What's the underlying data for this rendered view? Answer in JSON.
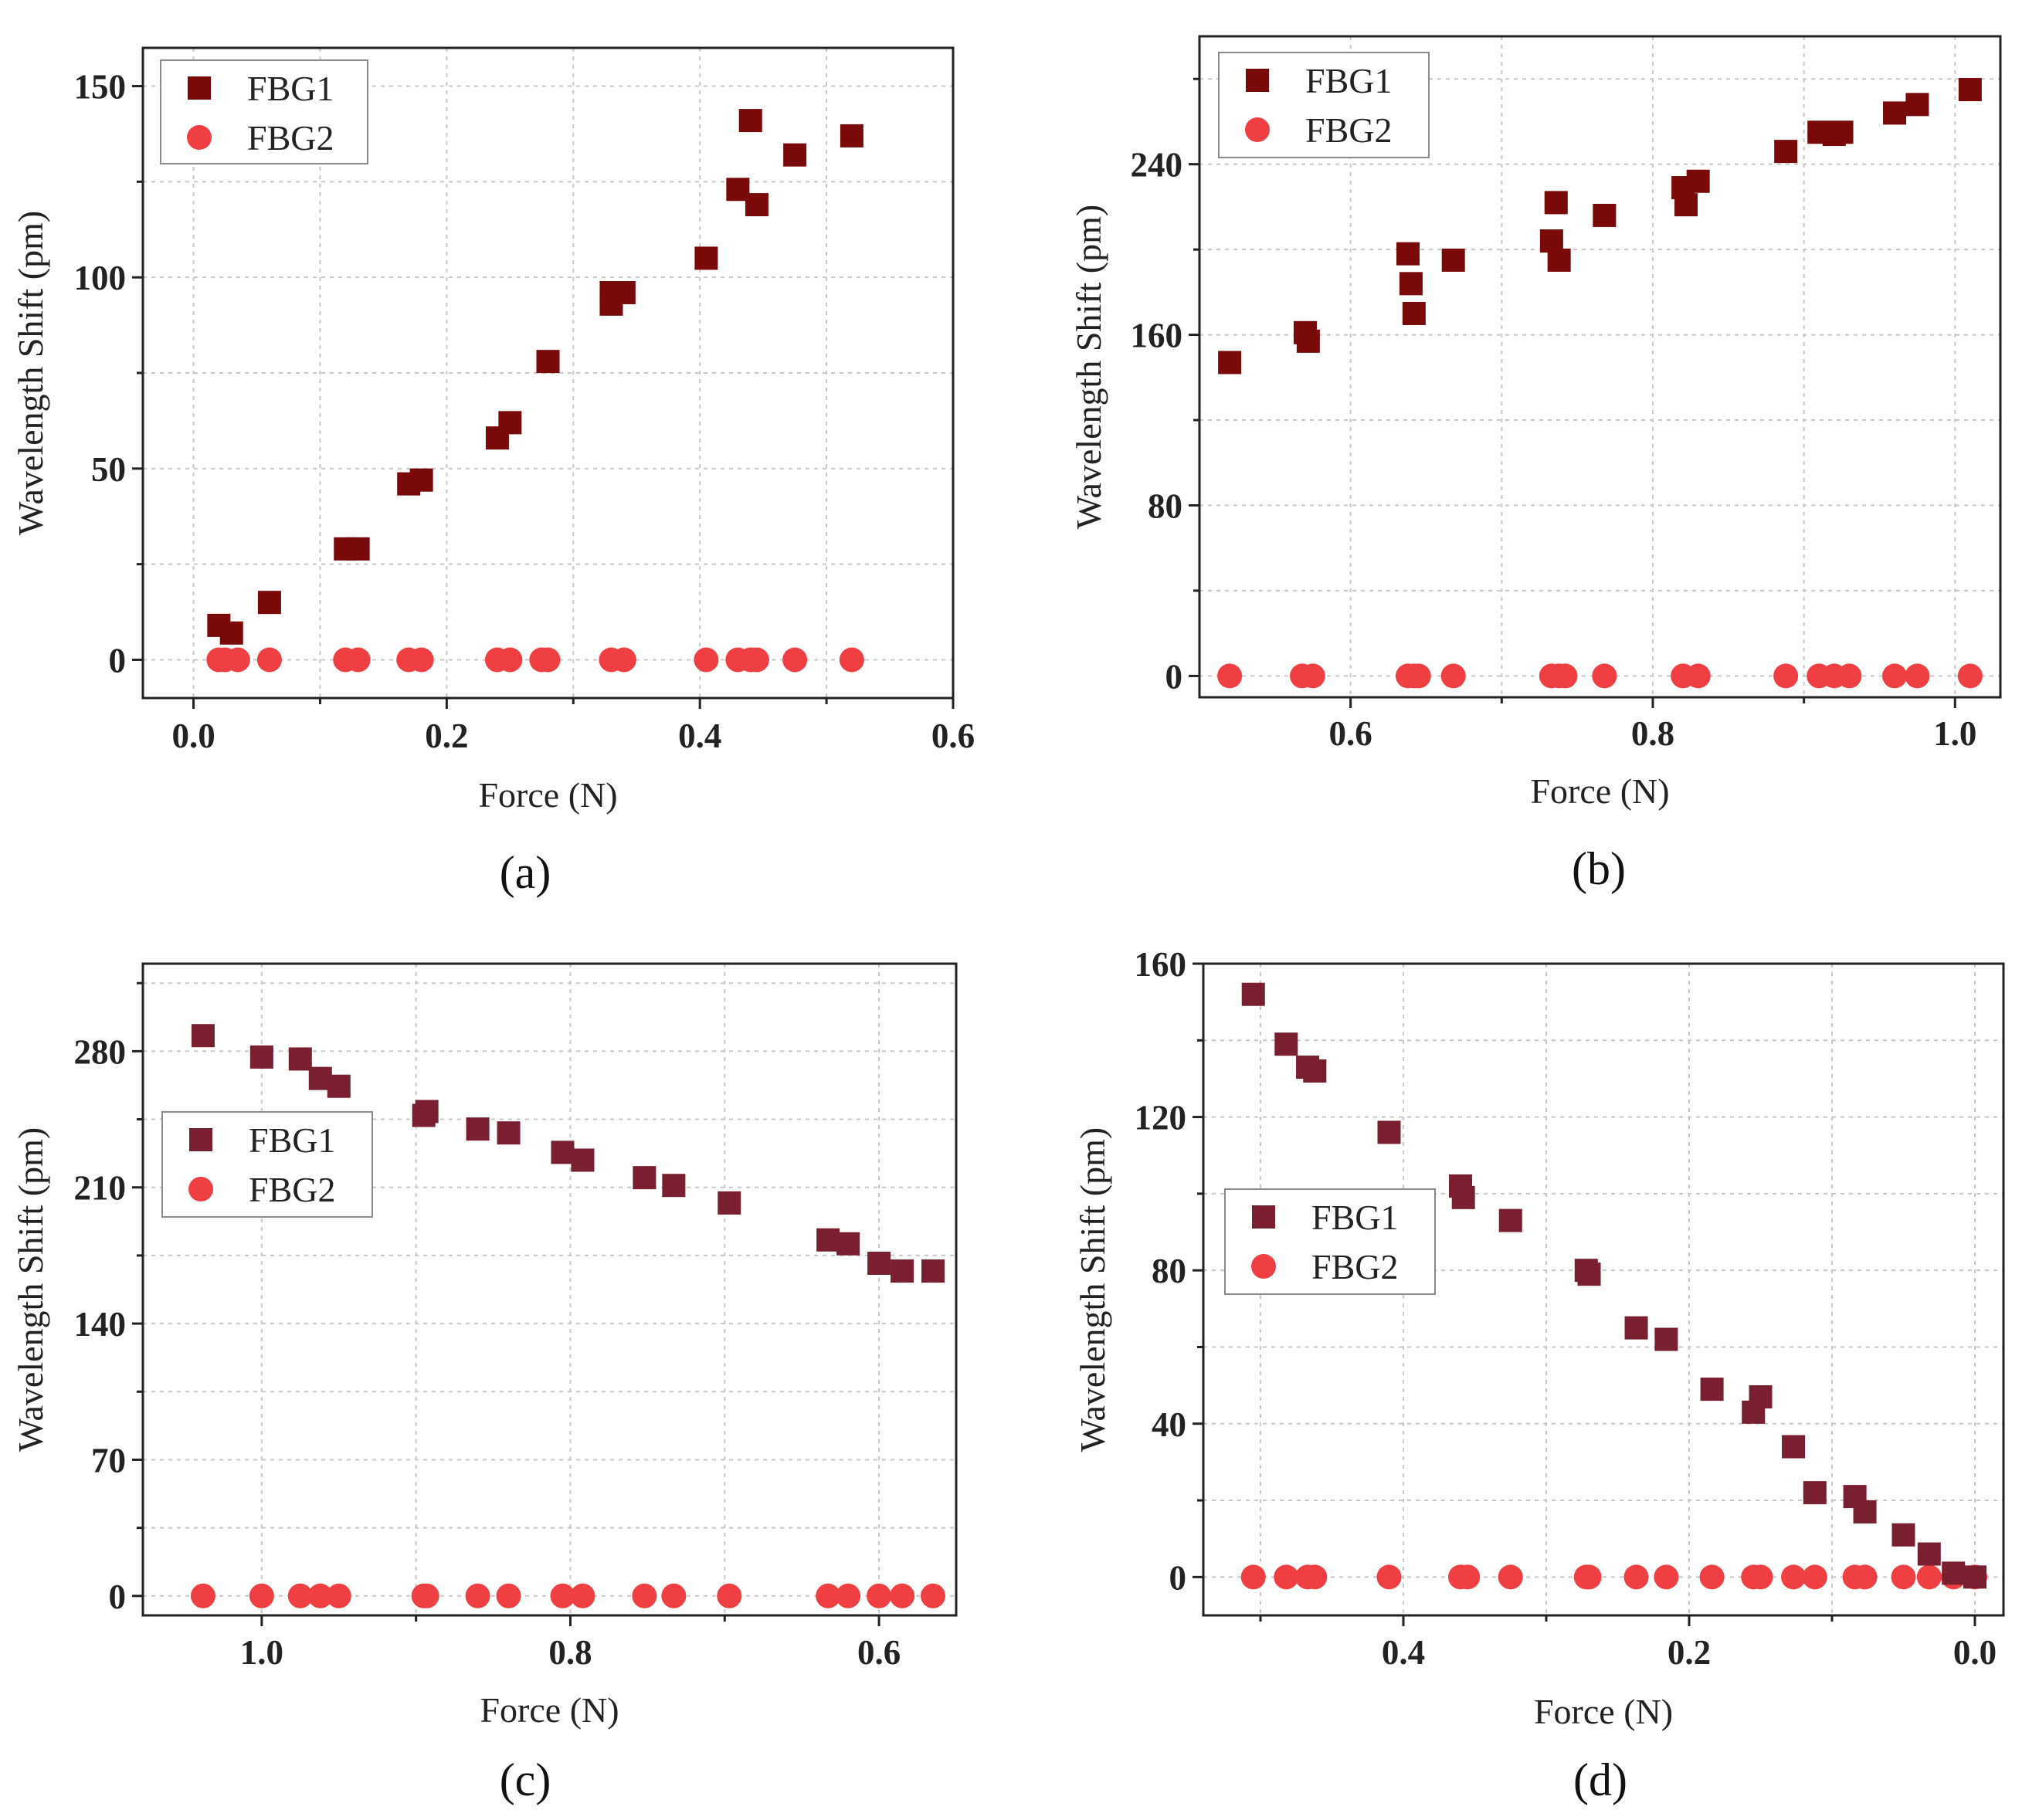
{
  "colors": {
    "fbg2": "#ef3f42",
    "fbg1_ab": "#7a0a0a",
    "fbg1_cd": "#7a1f30"
  },
  "panels": [
    {
      "caption": "(a)",
      "xlabel": "Force (N)",
      "ylabel": "Wavelength Shift (pm)",
      "legend": [
        "FBG1",
        "FBG2"
      ],
      "xticks": [
        "0.0",
        "0.2",
        "0.4",
        "0.6"
      ],
      "yticks": [
        "0",
        "50",
        "100",
        "150"
      ]
    },
    {
      "caption": "(b)",
      "xlabel": "Force (N)",
      "ylabel": "Wavelength Shift (pm)",
      "legend": [
        "FBG1",
        "FBG2"
      ],
      "xticks": [
        "0.6",
        "0.8",
        "1.0"
      ],
      "yticks": [
        "0",
        "80",
        "160",
        "240"
      ]
    },
    {
      "caption": "(c)",
      "xlabel": "Force (N)",
      "ylabel": "Wavelength Shift (pm)",
      "legend": [
        "FBG1",
        "FBG2"
      ],
      "xticks": [
        "1.0",
        "0.8",
        "0.6"
      ],
      "yticks": [
        "0",
        "70",
        "140",
        "210",
        "280"
      ]
    },
    {
      "caption": "(d)",
      "xlabel": "Force (N)",
      "ylabel": "Wavelength Shift (pm)",
      "legend": [
        "FBG1",
        "FBG2"
      ],
      "xticks": [
        "0.4",
        "0.2",
        "0.0"
      ],
      "yticks": [
        "0",
        "40",
        "80",
        "120",
        "160"
      ]
    }
  ],
  "chart_data": [
    {
      "type": "scatter",
      "title": "(a)",
      "xlabel": "Force (N)",
      "ylabel": "Wavelength Shift (pm)",
      "xlim": [
        -0.04,
        0.6
      ],
      "ylim": [
        -10,
        160
      ],
      "xticks": [
        0.0,
        0.2,
        0.4,
        0.6
      ],
      "yticks": [
        0,
        50,
        100,
        150
      ],
      "reversed_x": false,
      "legend_position": "top-left",
      "series": [
        {
          "name": "FBG1",
          "marker": "square",
          "x": [
            0.02,
            0.03,
            0.06,
            0.12,
            0.13,
            0.17,
            0.18,
            0.24,
            0.25,
            0.28,
            0.33,
            0.33,
            0.34,
            0.405,
            0.43,
            0.44,
            0.445,
            0.475,
            0.52
          ],
          "y": [
            9,
            7,
            15,
            29,
            29,
            46,
            47,
            58,
            62,
            78,
            93,
            96,
            96,
            105,
            123,
            141,
            119,
            132,
            137
          ]
        },
        {
          "name": "FBG2",
          "marker": "circle",
          "x": [
            0.02,
            0.025,
            0.035,
            0.06,
            0.12,
            0.13,
            0.17,
            0.18,
            0.24,
            0.25,
            0.275,
            0.28,
            0.33,
            0.34,
            0.405,
            0.43,
            0.44,
            0.445,
            0.475,
            0.52
          ],
          "y": [
            0,
            0,
            0,
            0,
            0,
            0,
            0,
            0,
            0,
            0,
            0,
            0,
            0,
            0,
            0,
            0,
            0,
            0,
            0,
            0
          ]
        }
      ]
    },
    {
      "type": "scatter",
      "title": "(b)",
      "xlabel": "Force (N)",
      "ylabel": "Wavelength Shift (pm)",
      "xlim": [
        0.5,
        1.03
      ],
      "ylim": [
        -10,
        300
      ],
      "xticks": [
        0.6,
        0.8,
        1.0
      ],
      "yticks": [
        0,
        80,
        160,
        240
      ],
      "reversed_x": false,
      "legend_position": "top-left",
      "series": [
        {
          "name": "FBG1",
          "marker": "square",
          "x": [
            0.52,
            0.57,
            0.572,
            0.638,
            0.64,
            0.642,
            0.668,
            0.733,
            0.736,
            0.738,
            0.768,
            0.82,
            0.822,
            0.83,
            0.888,
            0.91,
            0.92,
            0.925,
            0.96,
            0.975,
            1.01
          ],
          "y": [
            147,
            161,
            157,
            198,
            184,
            170,
            195,
            204,
            222,
            195,
            216,
            229,
            221,
            232,
            246,
            255,
            254,
            255,
            264,
            268,
            275
          ]
        },
        {
          "name": "FBG2",
          "marker": "circle",
          "x": [
            0.52,
            0.568,
            0.575,
            0.638,
            0.642,
            0.645,
            0.668,
            0.733,
            0.738,
            0.742,
            0.768,
            0.82,
            0.83,
            0.888,
            0.91,
            0.92,
            0.93,
            0.96,
            0.975,
            1.01
          ],
          "y": [
            0,
            0,
            0,
            0,
            0,
            0,
            0,
            0,
            0,
            0,
            0,
            0,
            0,
            0,
            0,
            0,
            0,
            0,
            0,
            0
          ]
        }
      ]
    },
    {
      "type": "scatter",
      "title": "(c)",
      "xlabel": "Force (N)",
      "ylabel": "Wavelength Shift (pm)",
      "xlim": [
        1.077,
        0.55
      ],
      "ylim": [
        -10,
        325
      ],
      "xticks": [
        1.0,
        0.8,
        0.6
      ],
      "yticks": [
        0,
        70,
        140,
        210,
        280
      ],
      "reversed_x": true,
      "legend_position": "middle-left",
      "series": [
        {
          "name": "FBG1",
          "marker": "square",
          "x": [
            1.038,
            1.0,
            0.975,
            0.962,
            0.95,
            0.895,
            0.893,
            0.86,
            0.84,
            0.805,
            0.792,
            0.752,
            0.733,
            0.697,
            0.633,
            0.62,
            0.6,
            0.585,
            0.565
          ],
          "y": [
            288,
            277,
            276,
            266,
            262,
            247,
            249,
            240,
            238,
            228,
            224,
            215,
            211,
            202,
            183,
            181,
            171,
            167,
            167
          ]
        },
        {
          "name": "FBG2",
          "marker": "circle",
          "x": [
            1.038,
            1.0,
            0.975,
            0.962,
            0.95,
            0.895,
            0.893,
            0.86,
            0.84,
            0.805,
            0.792,
            0.752,
            0.733,
            0.697,
            0.633,
            0.62,
            0.6,
            0.585,
            0.565
          ],
          "y": [
            0,
            0,
            0,
            0,
            0,
            0,
            0,
            0,
            0,
            0,
            0,
            0,
            0,
            0,
            0,
            0,
            0,
            0,
            0
          ]
        }
      ]
    },
    {
      "type": "scatter",
      "title": "(d)",
      "xlabel": "Force (N)",
      "ylabel": "Wavelength Shift (pm)",
      "xlim": [
        0.54,
        -0.02
      ],
      "ylim": [
        -10,
        160
      ],
      "xticks": [
        0.4,
        0.2,
        0.0
      ],
      "yticks": [
        0,
        40,
        80,
        120,
        160
      ],
      "reversed_x": true,
      "legend_position": "middle-left",
      "series": [
        {
          "name": "FBG1",
          "marker": "square",
          "x": [
            0.505,
            0.482,
            0.467,
            0.462,
            0.41,
            0.36,
            0.358,
            0.325,
            0.272,
            0.27,
            0.237,
            0.216,
            0.184,
            0.155,
            0.15,
            0.127,
            0.112,
            0.084,
            0.077,
            0.05,
            0.032,
            0.015,
            0.0
          ],
          "y": [
            152,
            139,
            133,
            132,
            116,
            102,
            99,
            93,
            80,
            79,
            65,
            62,
            49,
            43,
            47,
            34,
            22,
            21,
            17,
            11,
            6,
            1,
            0
          ]
        },
        {
          "name": "FBG2",
          "marker": "circle",
          "x": [
            0.505,
            0.482,
            0.467,
            0.462,
            0.41,
            0.36,
            0.355,
            0.325,
            0.272,
            0.27,
            0.237,
            0.216,
            0.184,
            0.155,
            0.15,
            0.127,
            0.112,
            0.084,
            0.077,
            0.05,
            0.032,
            0.015,
            0.0
          ],
          "y": [
            0,
            0,
            0,
            0,
            0,
            0,
            0,
            0,
            0,
            0,
            0,
            0,
            0,
            0,
            0,
            0,
            0,
            0,
            0,
            0,
            0,
            0,
            0
          ]
        }
      ]
    }
  ]
}
